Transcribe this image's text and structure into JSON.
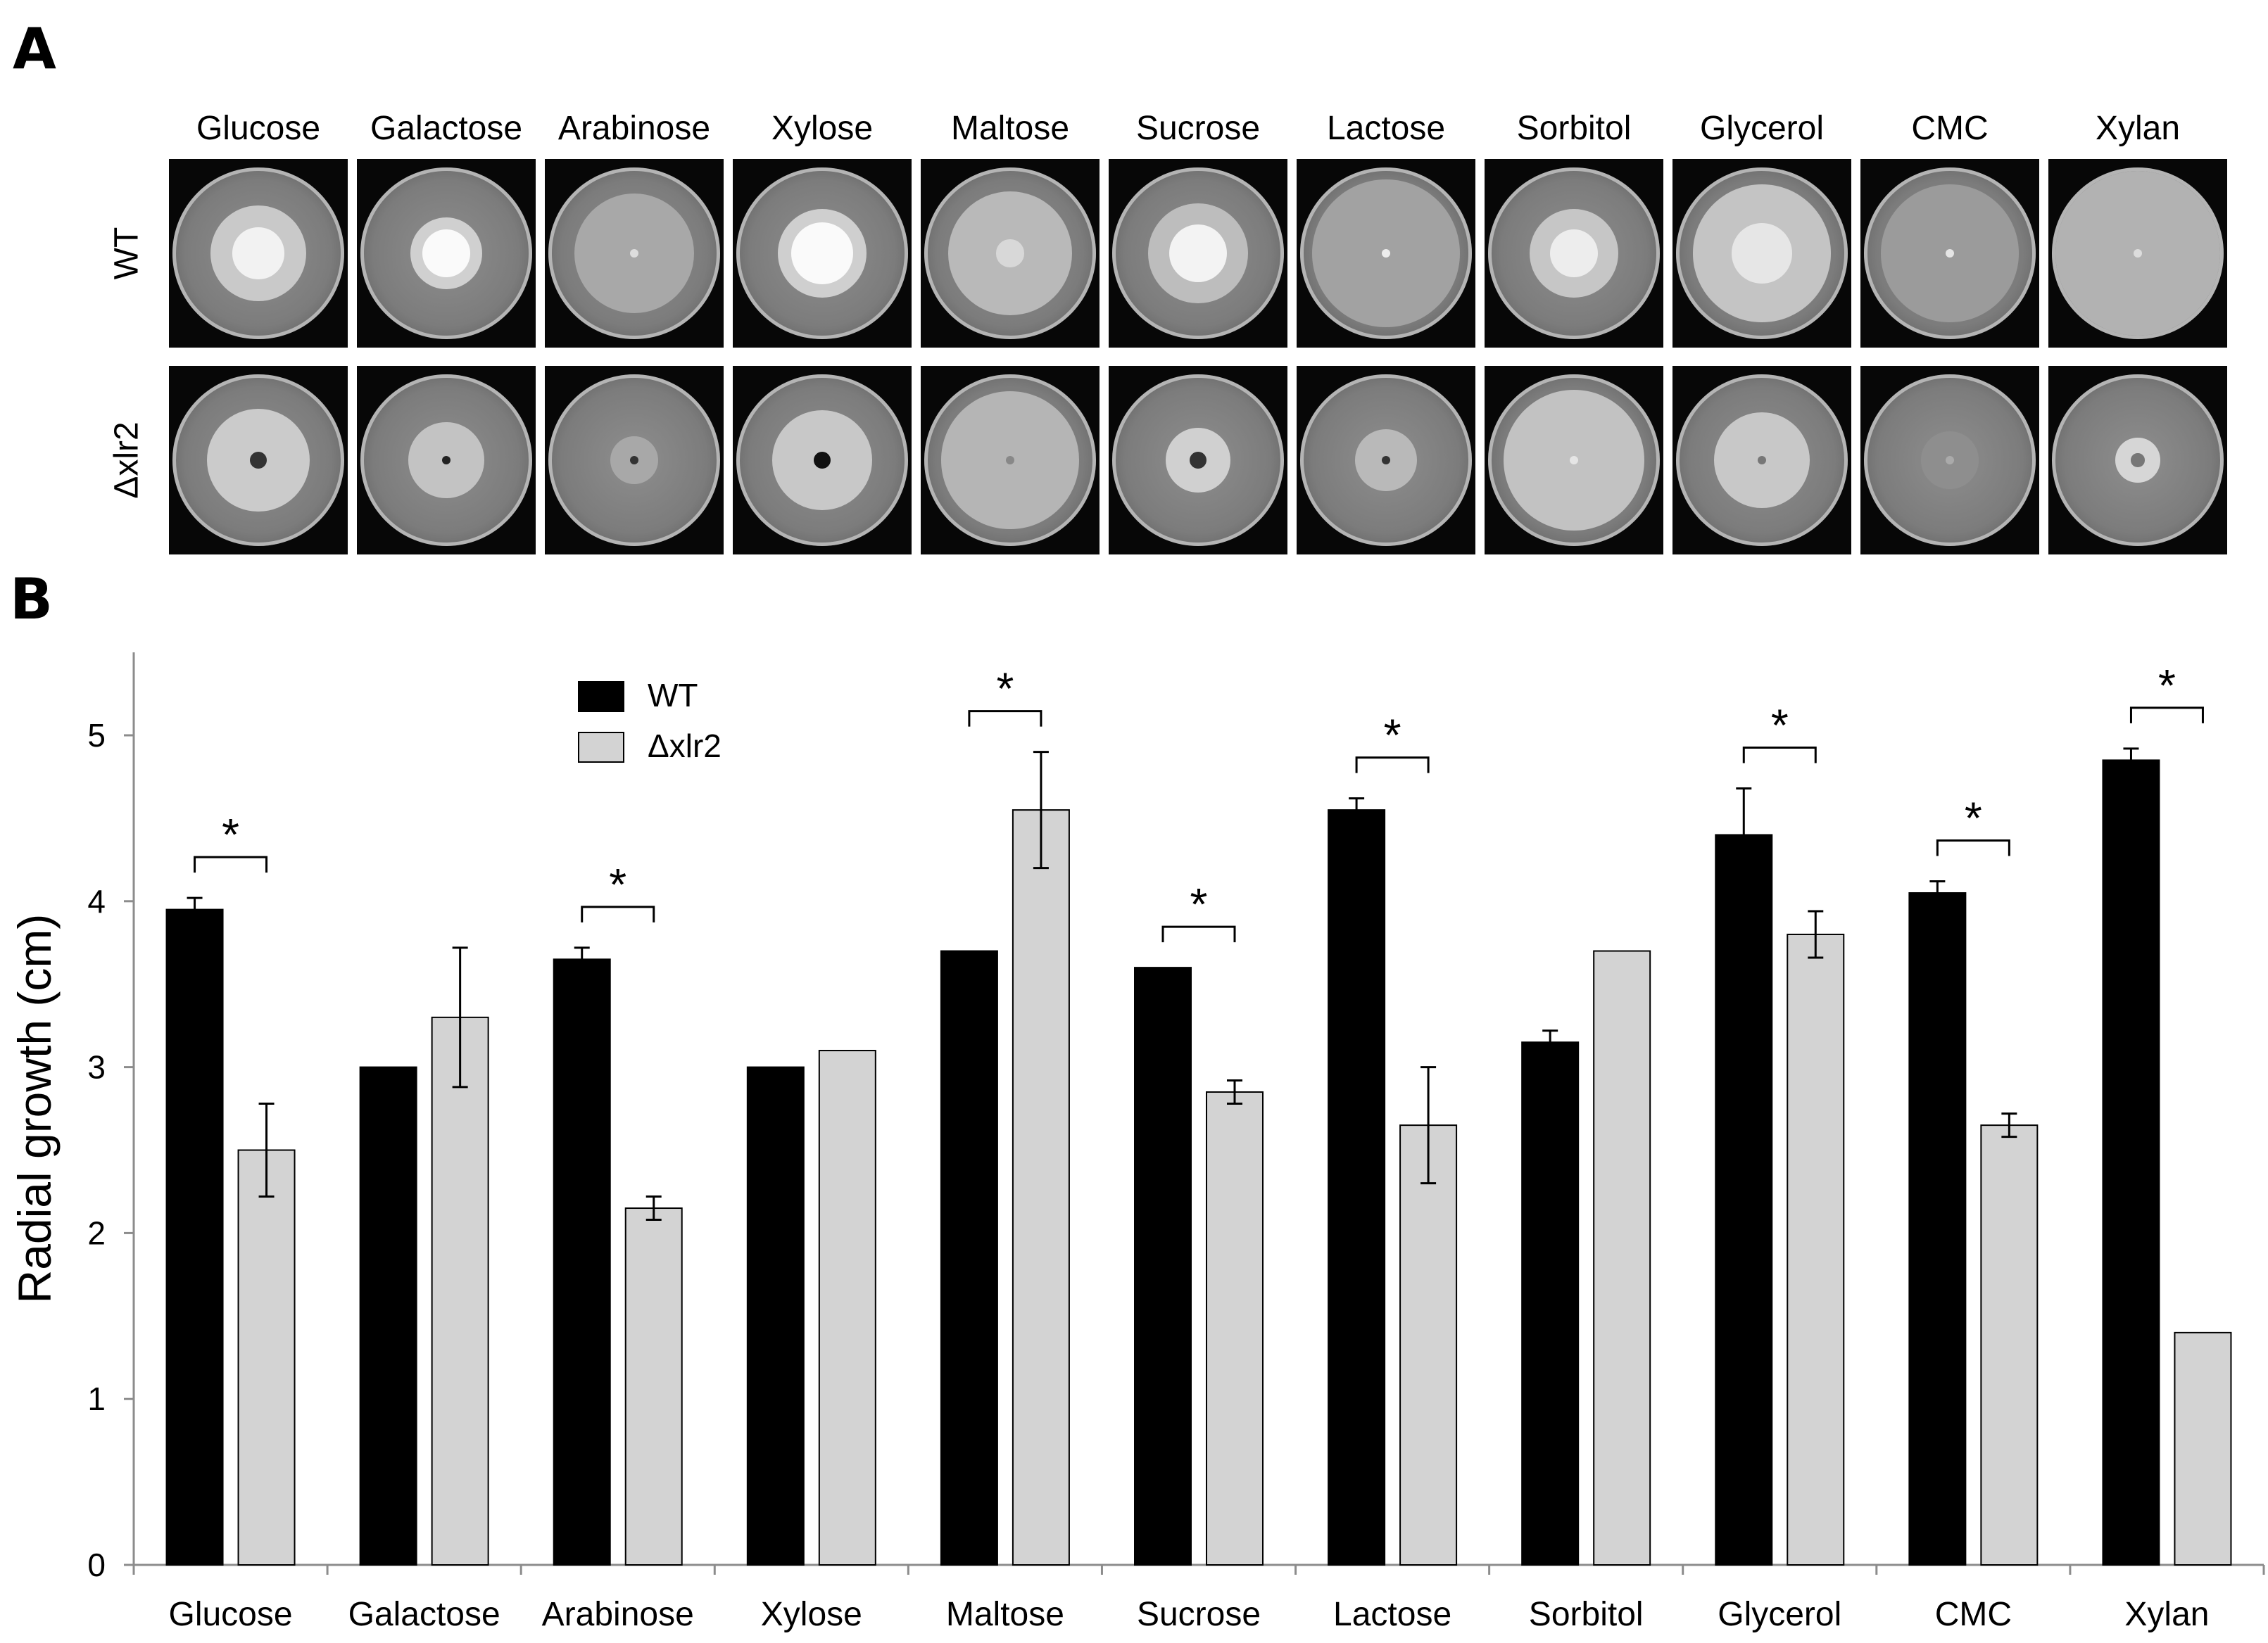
{
  "panel_labels": {
    "a": "A",
    "b": "B"
  },
  "plates": {
    "columns": [
      "Glucose",
      "Galactose",
      "Arabinose",
      "Xylose",
      "Maltose",
      "Sucrose",
      "Lactose",
      "Sorbitol",
      "Glycerol",
      "CMC",
      "Xylan"
    ],
    "rows": [
      "WT",
      "Δxlr2"
    ]
  },
  "chart_data": {
    "type": "bar",
    "title": "",
    "xlabel": "",
    "ylabel": "Radial growth (cm)",
    "ylim": [
      0,
      5.5
    ],
    "yticks": [
      0,
      1,
      2,
      3,
      4,
      5
    ],
    "grid": false,
    "legend": "top-left",
    "categories": [
      "Glucose",
      "Galactose",
      "Arabinose",
      "Xylose",
      "Maltose",
      "Sucrose",
      "Lactose",
      "Sorbitol",
      "Glycerol",
      "CMC",
      "Xylan"
    ],
    "series": [
      {
        "name": "WT",
        "color": "#000000",
        "values": [
          3.95,
          3.0,
          3.65,
          3.0,
          3.7,
          3.6,
          4.55,
          3.15,
          4.4,
          4.05,
          4.85
        ],
        "errors": [
          0.07,
          0,
          0.07,
          0,
          0,
          0,
          0.07,
          0.07,
          0.28,
          0.07,
          0.07
        ]
      },
      {
        "name": "Δxlr2",
        "color": "#d3d3d3",
        "values": [
          2.5,
          3.3,
          2.15,
          3.1,
          4.55,
          2.85,
          2.65,
          3.7,
          3.8,
          2.65,
          1.4
        ],
        "errors": [
          0.28,
          0.42,
          0.07,
          0,
          0.35,
          0.07,
          0.35,
          0,
          0.14,
          0.07,
          0
        ]
      }
    ],
    "significance": {
      "symbol": "*",
      "categories": [
        "Glucose",
        "Arabinose",
        "Maltose",
        "Sucrose",
        "Lactose",
        "Glycerol",
        "CMC",
        "Xylan"
      ]
    }
  }
}
